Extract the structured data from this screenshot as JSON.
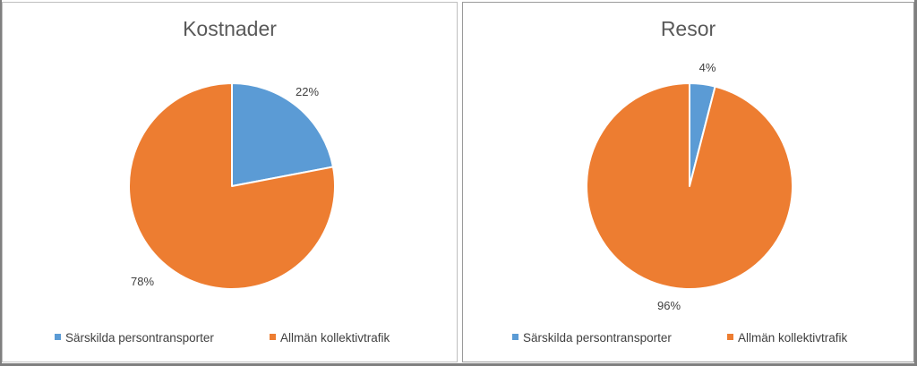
{
  "chart_data": [
    {
      "type": "pie",
      "title": "Kostnader",
      "categories": [
        "Särskilda persontransporter",
        "Allmän kollektivtrafik"
      ],
      "values": [
        22,
        78
      ],
      "labels": [
        "22%",
        "78%"
      ],
      "colors": [
        "#5b9bd5",
        "#ed7d31"
      ],
      "legend": "bottom",
      "start_angle": "12 o'clock, clockwise"
    },
    {
      "type": "pie",
      "title": "Resor",
      "categories": [
        "Särskilda persontransporter",
        "Allmän kollektivtrafik"
      ],
      "values": [
        4,
        96
      ],
      "labels": [
        "4%",
        "96%"
      ],
      "colors": [
        "#5b9bd5",
        "#ed7d31"
      ],
      "legend": "bottom",
      "start_angle": "12 o'clock, clockwise"
    }
  ]
}
